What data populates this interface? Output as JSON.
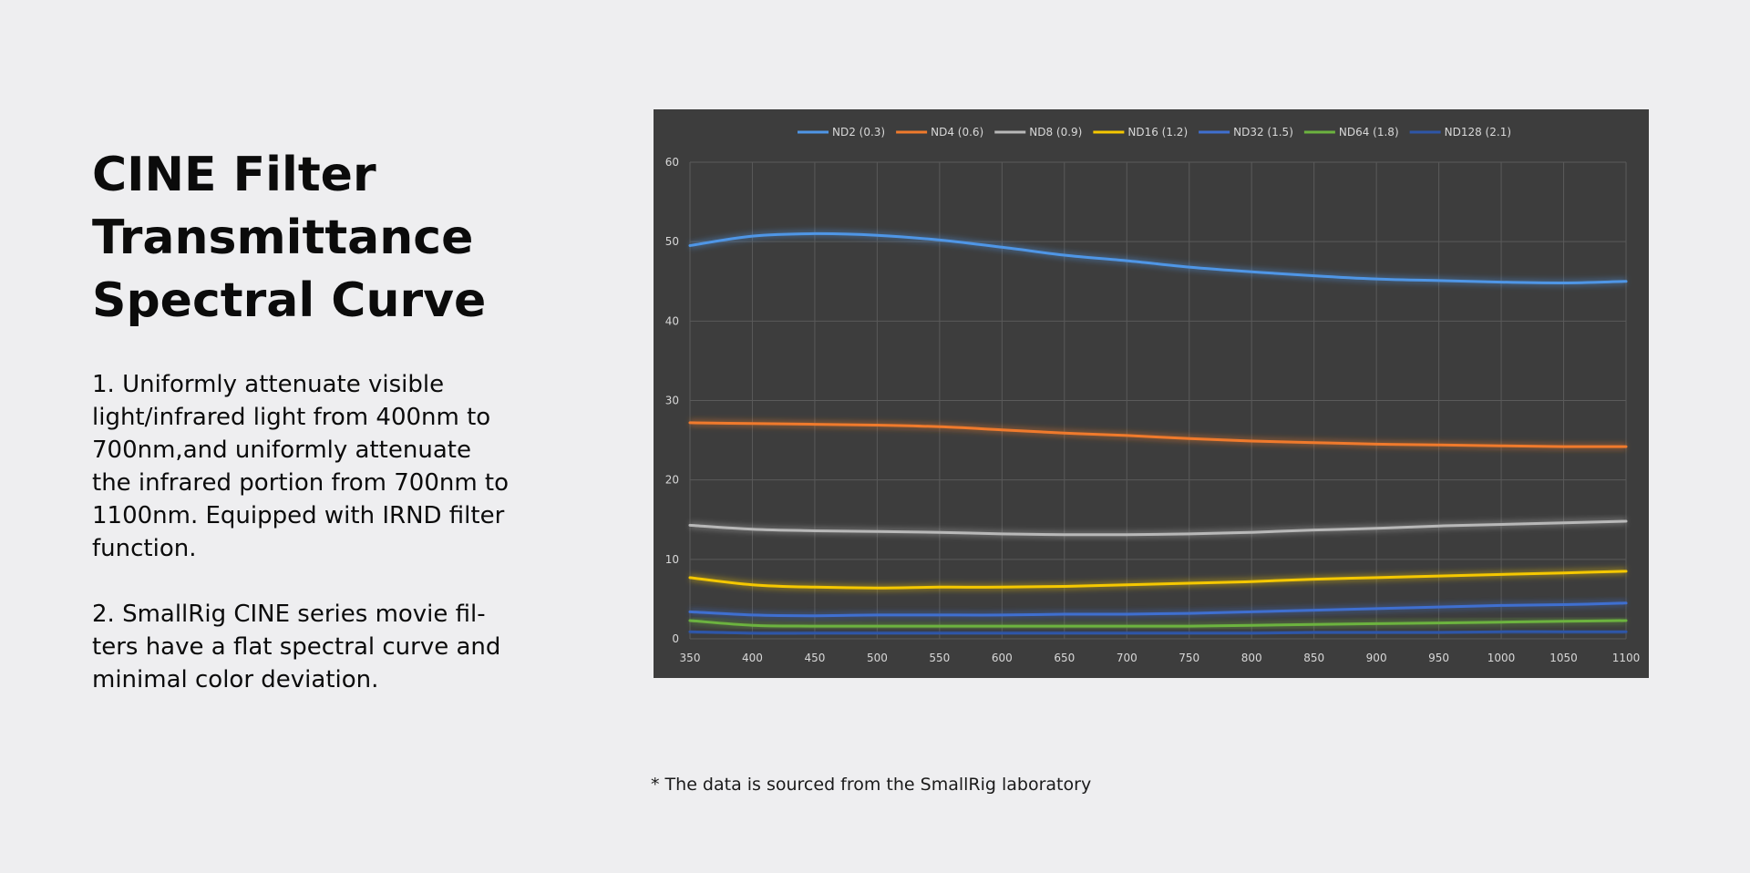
{
  "heading": {
    "lines": [
      "CINE Filter",
      "Transmittance",
      "Spectral Curve"
    ]
  },
  "description": {
    "point1": [
      "1. Uniformly attenuate visible",
      "light/infrared light from 400nm to",
      "700nm,and uniformly attenuate",
      "the infrared portion from 700nm to",
      "1100nm. Equipped with IRND filter",
      "function."
    ],
    "point2": [
      "2. SmallRig CINE series movie fil-",
      "ters have a flat spectral curve and",
      "minimal color deviation."
    ]
  },
  "footnote": "* The data is sourced from the SmallRig laboratory",
  "colors": {
    "page_background": "#eeeef0",
    "chart_background": "#3d3d3d",
    "grid": "#5a5a5a",
    "tick_text": "#d8d8d8"
  },
  "chart_data": {
    "type": "line",
    "title": "",
    "xlabel": "",
    "ylabel": "",
    "xlim": [
      350,
      1100
    ],
    "ylim": [
      0,
      60
    ],
    "xticks": [
      350,
      400,
      450,
      500,
      550,
      600,
      650,
      700,
      750,
      800,
      850,
      900,
      950,
      1000,
      1050,
      1100
    ],
    "yticks": [
      0,
      10,
      20,
      30,
      40,
      50,
      60
    ],
    "grid": true,
    "legend_position": "top",
    "x": [
      350,
      400,
      450,
      500,
      550,
      600,
      650,
      700,
      750,
      800,
      850,
      900,
      950,
      1000,
      1050,
      1100
    ],
    "series": [
      {
        "name": "ND2",
        "note": "(0.3)",
        "color": "#4f96e6",
        "values": [
          49.5,
          50.7,
          51.0,
          50.8,
          50.2,
          49.3,
          48.3,
          47.6,
          46.8,
          46.2,
          45.7,
          45.3,
          45.1,
          44.9,
          44.8,
          45.0
        ]
      },
      {
        "name": "ND4",
        "note": "(0.6)",
        "color": "#f07a2c",
        "values": [
          27.2,
          27.1,
          27.0,
          26.9,
          26.7,
          26.3,
          25.9,
          25.6,
          25.2,
          24.9,
          24.7,
          24.5,
          24.4,
          24.3,
          24.2,
          24.2
        ]
      },
      {
        "name": "ND8",
        "note": "(0.9)",
        "color": "#b8b8b8",
        "values": [
          14.3,
          13.8,
          13.6,
          13.5,
          13.4,
          13.2,
          13.1,
          13.1,
          13.2,
          13.4,
          13.7,
          13.9,
          14.2,
          14.4,
          14.6,
          14.8
        ]
      },
      {
        "name": "ND16",
        "note": "(1.2)",
        "color": "#f5c800",
        "values": [
          7.7,
          6.8,
          6.5,
          6.4,
          6.5,
          6.5,
          6.6,
          6.8,
          7.0,
          7.2,
          7.5,
          7.7,
          7.9,
          8.1,
          8.3,
          8.5
        ]
      },
      {
        "name": "ND32",
        "note": "(1.5)",
        "color": "#3f6fd0",
        "values": [
          3.4,
          3.0,
          2.9,
          3.0,
          3.0,
          3.0,
          3.1,
          3.1,
          3.2,
          3.4,
          3.6,
          3.8,
          4.0,
          4.2,
          4.3,
          4.5
        ]
      },
      {
        "name": "ND64",
        "note": "(1.8)",
        "color": "#6cb33f",
        "values": [
          2.3,
          1.7,
          1.6,
          1.6,
          1.6,
          1.6,
          1.6,
          1.6,
          1.6,
          1.7,
          1.8,
          1.9,
          2.0,
          2.1,
          2.2,
          2.3
        ]
      },
      {
        "name": "ND128",
        "note": "(2.1)",
        "color": "#2e56a8",
        "values": [
          0.9,
          0.7,
          0.7,
          0.7,
          0.7,
          0.7,
          0.7,
          0.7,
          0.7,
          0.7,
          0.8,
          0.8,
          0.8,
          0.9,
          0.9,
          0.9
        ]
      }
    ]
  }
}
